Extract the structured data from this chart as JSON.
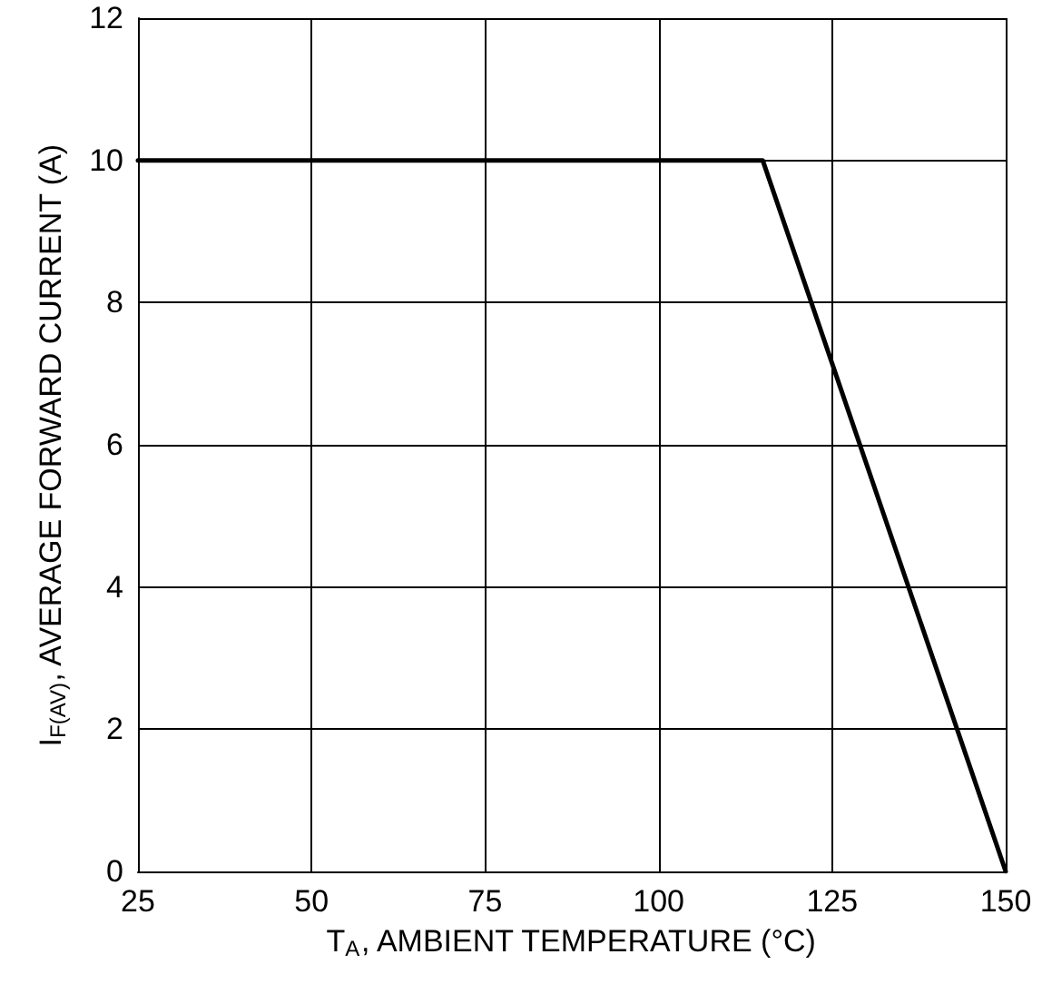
{
  "chart_data": {
    "type": "line",
    "xlabel": "T$_{A}$, AMBIENT TEMPERATURE (°C)",
    "ylabel": "I$_{F(AV)}$, AVERAGE FORWARD CURRENT (A)",
    "x": [
      25,
      115,
      150
    ],
    "series": [
      {
        "color": "#000000",
        "values": [
          10,
          10,
          0
        ]
      }
    ],
    "xlim": [
      25,
      150
    ],
    "xticks": [
      25,
      50,
      75,
      100,
      125,
      150
    ],
    "ylim": [
      0,
      12
    ],
    "yticks": [
      0,
      2,
      4,
      6,
      8,
      10,
      12
    ],
    "grid": true,
    "marker": "none",
    "line_style": "solid"
  }
}
